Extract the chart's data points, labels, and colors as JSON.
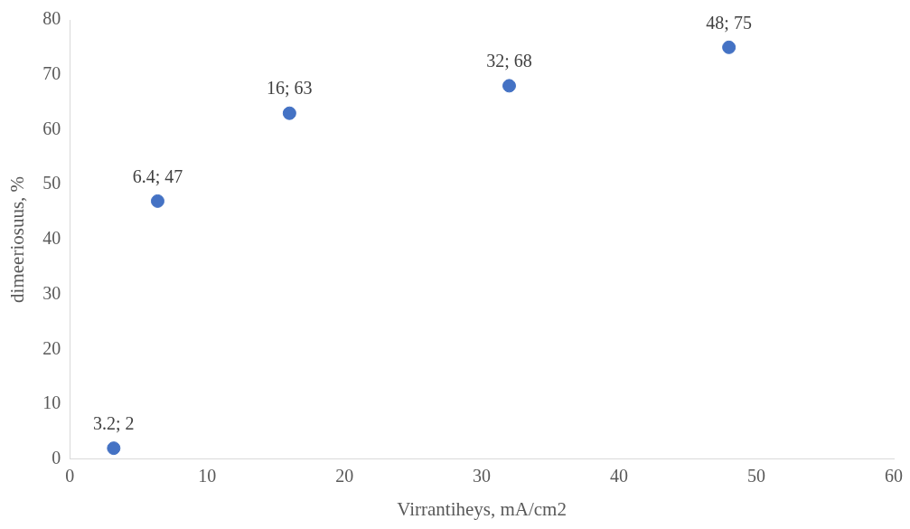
{
  "chart_data": {
    "type": "scatter",
    "xlabel": "Virrantiheys, mA/cm2",
    "ylabel": "dimeeriosuus, %",
    "x": [
      3.2,
      6.4,
      16,
      32,
      48
    ],
    "series": [
      {
        "color": "#4472c4",
        "values": [
          2,
          47,
          63,
          68,
          75
        ],
        "value_labels": [
          "3.2; 2",
          "6.4; 47",
          "16; 63",
          "32; 68",
          "48; 75"
        ]
      }
    ],
    "xlim": [
      0,
      60
    ],
    "xticks": [
      0,
      10,
      20,
      30,
      40,
      50,
      60
    ],
    "ylim": [
      0,
      80
    ],
    "yticks": [
      0,
      10,
      20,
      30,
      40,
      50,
      60,
      70,
      80
    ],
    "grid": false,
    "legend": false,
    "marker": "circle"
  }
}
